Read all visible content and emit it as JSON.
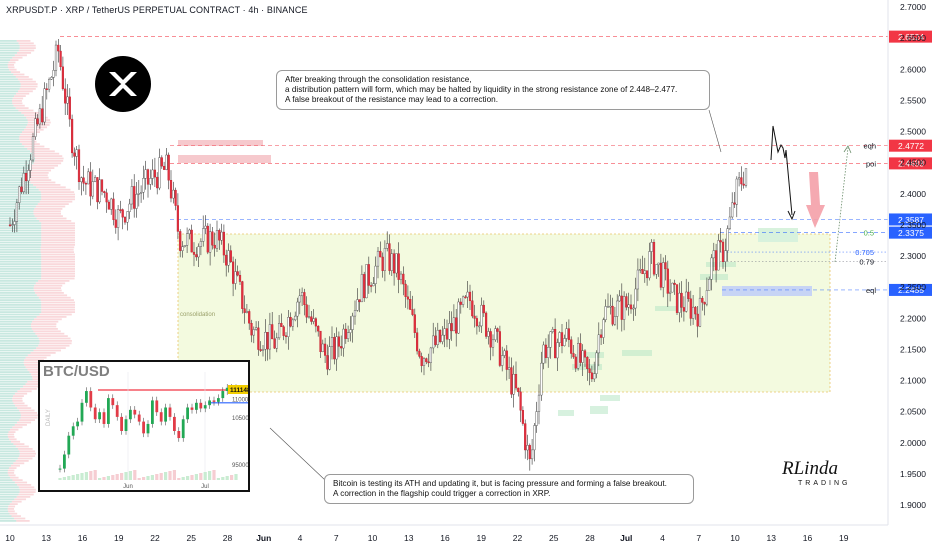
{
  "header": {
    "title": "XRPUSDT.P · XRP / TetherUS PERPETUAL CONTRACT · 4h · BINANCE"
  },
  "notes": {
    "top": [
      "After breaking through the consolidation resistance,",
      "a distribution pattern will form, which may be halted by liquidity in the strong resistance zone of 2.448–2.477.",
      "A false breakout of the resistance may lead to a correction."
    ],
    "bottom": [
      "Bitcoin is testing its ATH and updating it, but is facing pressure and forming a false breakout.",
      "A correction in the flagship could trigger a correction in XRP."
    ]
  },
  "zones": {
    "consolidation_label": "consolidation"
  },
  "levels": [
    {
      "label": "",
      "price": "2.6524",
      "value": 2.6524,
      "color": "#f23645",
      "style": "dashed"
    },
    {
      "label": "eqh",
      "price": "2.4772",
      "value": 2.4772,
      "color": "#f23645",
      "style": "dashed"
    },
    {
      "label": "poi",
      "price": "2.4488",
      "value": 2.4488,
      "color": "#f23645",
      "style": "dashed"
    },
    {
      "label": "",
      "price": "2.3587",
      "value": 2.3587,
      "color": "#2962ff",
      "style": "dashed"
    },
    {
      "label": "0.5",
      "price": "2.3375",
      "value": 2.3375,
      "color": "#2962ff",
      "style": "dashed"
    },
    {
      "label": "0.705",
      "price": "",
      "value": 2.3063,
      "color": "#2962ff",
      "style": "dotted"
    },
    {
      "label": "0.79",
      "price": "",
      "value": 2.2911,
      "color": "#787b86",
      "style": "dotted"
    },
    {
      "label": "eql",
      "price": "2.2455",
      "value": 2.2455,
      "color": "#2962ff",
      "style": "dashed"
    }
  ],
  "y_axis": {
    "ticks": [
      "2.7000",
      "2.6500",
      "2.6000",
      "2.5500",
      "2.5000",
      "2.4500",
      "2.4000",
      "2.3500",
      "2.3000",
      "2.2500",
      "2.2000",
      "2.1500",
      "2.1000",
      "2.0500",
      "2.0000",
      "1.9500",
      "1.9000"
    ]
  },
  "x_axis": {
    "ticks": [
      "10",
      "13",
      "16",
      "19",
      "22",
      "25",
      "28",
      "Jun",
      "4",
      "7",
      "10",
      "13",
      "16",
      "19",
      "22",
      "25",
      "28",
      "Jul",
      "4",
      "7",
      "10",
      "13",
      "16",
      "19"
    ]
  },
  "inset": {
    "title": "BTC/USD",
    "timeframe": "DAILY",
    "price_tag": "111148",
    "y_ticks": [
      "110000",
      "105000",
      "95000"
    ],
    "x_ticks": [
      "Jun",
      "Jul"
    ]
  },
  "logo": {
    "icon": "xrp-logo-icon"
  },
  "brand": {
    "top": "RLinda",
    "bottom": "TRADING"
  },
  "colors": {
    "up": "#089981",
    "down": "#f23645",
    "bull_candle_fill": "#ffffff",
    "zone_green": "#e8f5c8",
    "accent_blue": "#2962ff"
  },
  "chart_data": {
    "type": "candlestick",
    "symbol": "XRPUSDT.P",
    "timeframe": "4h",
    "ylim": [
      1.87,
      2.71
    ],
    "close_path": [
      {
        "x": "May 10",
        "y": 2.35
      },
      {
        "x": "May 12",
        "y": 2.49
      },
      {
        "x": "May 13",
        "y": 2.56
      },
      {
        "x": "May 14",
        "y": 2.63
      },
      {
        "x": "May 15",
        "y": 2.5
      },
      {
        "x": "May 16",
        "y": 2.42
      },
      {
        "x": "May 18",
        "y": 2.4
      },
      {
        "x": "May 19",
        "y": 2.36
      },
      {
        "x": "May 20",
        "y": 2.39
      },
      {
        "x": "May 22",
        "y": 2.43
      },
      {
        "x": "May 23",
        "y": 2.44
      },
      {
        "x": "May 24",
        "y": 2.33
      },
      {
        "x": "May 25",
        "y": 2.32
      },
      {
        "x": "May 27",
        "y": 2.33
      },
      {
        "x": "May 28",
        "y": 2.3
      },
      {
        "x": "May 30",
        "y": 2.18
      },
      {
        "x": "Jun 1",
        "y": 2.16
      },
      {
        "x": "Jun 3",
        "y": 2.24
      },
      {
        "x": "Jun 5",
        "y": 2.14
      },
      {
        "x": "Jun 6",
        "y": 2.15
      },
      {
        "x": "Jun 8",
        "y": 2.25
      },
      {
        "x": "Jun 10",
        "y": 2.3
      },
      {
        "x": "Jun 11",
        "y": 2.28
      },
      {
        "x": "Jun 13",
        "y": 2.14
      },
      {
        "x": "Jun 15",
        "y": 2.17
      },
      {
        "x": "Jun 17",
        "y": 2.23
      },
      {
        "x": "Jun 19",
        "y": 2.17
      },
      {
        "x": "Jun 21",
        "y": 2.07
      },
      {
        "x": "Jun 22",
        "y": 1.96
      },
      {
        "x": "Jun 23",
        "y": 2.15
      },
      {
        "x": "Jun 25",
        "y": 2.17
      },
      {
        "x": "Jun 27",
        "y": 2.1
      },
      {
        "x": "Jun 28",
        "y": 2.21
      },
      {
        "x": "Jun 30",
        "y": 2.22
      },
      {
        "x": "Jul 2",
        "y": 2.3
      },
      {
        "x": "Jul 4",
        "y": 2.23
      },
      {
        "x": "Jul 6",
        "y": 2.21
      },
      {
        "x": "Jul 7",
        "y": 2.29
      },
      {
        "x": "Jul 8",
        "y": 2.31
      },
      {
        "x": "Jul 9",
        "y": 2.4
      },
      {
        "x": "Jul 10",
        "y": 2.45
      }
    ]
  }
}
